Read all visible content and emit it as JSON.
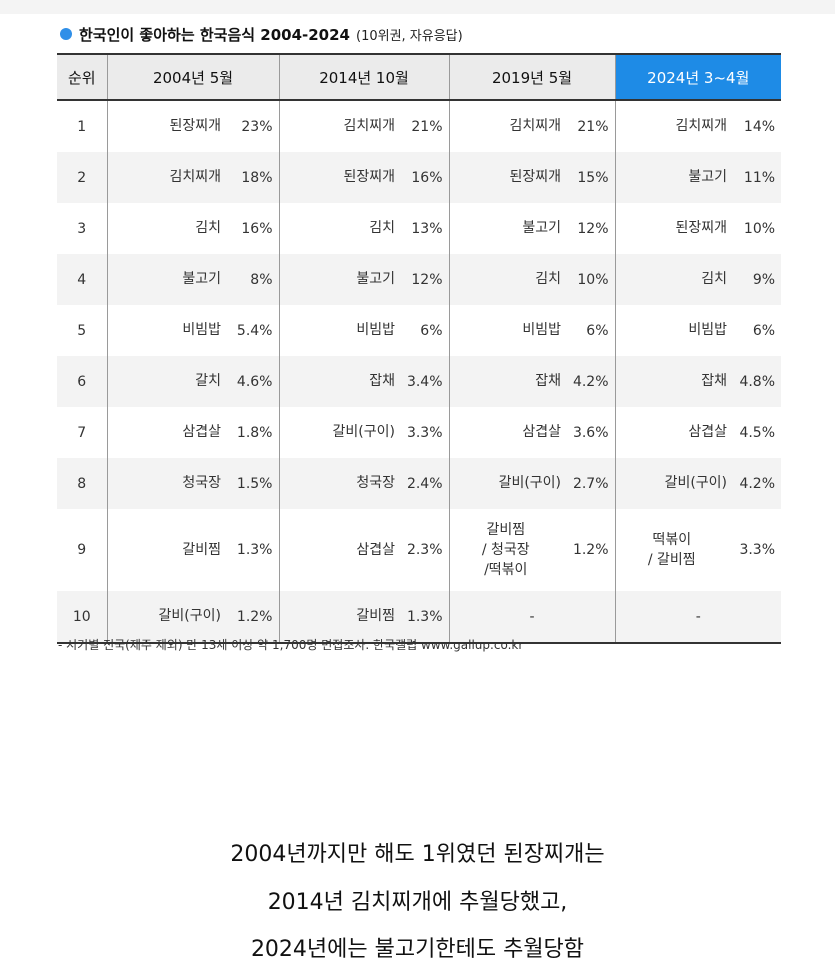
{
  "title": {
    "main": "한국인이 좋아하는 한국음식 2004-2024",
    "sub": "(10위권, 자유응답)"
  },
  "table": {
    "rank_header": "순위",
    "period_headers": [
      "2004년 5월",
      "2014년 10월",
      "2019년 5월",
      "2024년 3~4월"
    ],
    "rows": [
      {
        "rank": "1",
        "cells": [
          {
            "food": "된장찌개",
            "pct": "23%",
            "red": true
          },
          {
            "food": "김치찌개",
            "pct": "21%"
          },
          {
            "food": "김치찌개",
            "pct": "21%"
          },
          {
            "food": "김치찌개",
            "pct": "14%"
          }
        ]
      },
      {
        "rank": "2",
        "cells": [
          {
            "food": "김치찌개",
            "pct": "18%"
          },
          {
            "food": "된장찌개",
            "pct": "16%",
            "red": true
          },
          {
            "food": "된장찌개",
            "pct": "15%",
            "red": true
          },
          {
            "food": "불고기",
            "pct": "11%"
          }
        ]
      },
      {
        "rank": "3",
        "cells": [
          {
            "food": "김치",
            "pct": "16%"
          },
          {
            "food": "김치",
            "pct": "13%"
          },
          {
            "food": "불고기",
            "pct": "12%"
          },
          {
            "food": "된장찌개",
            "pct": "10%",
            "red": true
          }
        ]
      },
      {
        "rank": "4",
        "cells": [
          {
            "food": "불고기",
            "pct": "8%"
          },
          {
            "food": "불고기",
            "pct": "12%"
          },
          {
            "food": "김치",
            "pct": "10%"
          },
          {
            "food": "김치",
            "pct": "9%"
          }
        ]
      },
      {
        "rank": "5",
        "cells": [
          {
            "food": "비빔밥",
            "pct": "5.4%"
          },
          {
            "food": "비빔밥",
            "pct": "6%"
          },
          {
            "food": "비빔밥",
            "pct": "6%"
          },
          {
            "food": "비빔밥",
            "pct": "6%"
          }
        ]
      },
      {
        "rank": "6",
        "cells": [
          {
            "food": "갈치",
            "pct": "4.6%"
          },
          {
            "food": "잡채",
            "pct": "3.4%"
          },
          {
            "food": "잡채",
            "pct": "4.2%"
          },
          {
            "food": "잡채",
            "pct": "4.8%"
          }
        ]
      },
      {
        "rank": "7",
        "cells": [
          {
            "food": "삼겹살",
            "pct": "1.8%"
          },
          {
            "food": "갈비(구이)",
            "pct": "3.3%"
          },
          {
            "food": "삼겹살",
            "pct": "3.6%"
          },
          {
            "food": "삼겹살",
            "pct": "4.5%"
          }
        ]
      },
      {
        "rank": "8",
        "cells": [
          {
            "food": "청국장",
            "pct": "1.5%"
          },
          {
            "food": "청국장",
            "pct": "2.4%"
          },
          {
            "food": "갈비(구이)",
            "pct": "2.7%"
          },
          {
            "food": "갈비(구이)",
            "pct": "4.2%"
          }
        ]
      },
      {
        "rank": "9",
        "cells": [
          {
            "food": "갈비찜",
            "pct": "1.3%"
          },
          {
            "food": "삼겹살",
            "pct": "2.3%"
          },
          {
            "food": "갈비찜\n/ 청국장\n/떡볶이",
            "pct": "1.2%"
          },
          {
            "food": "떡볶이\n/ 갈비찜",
            "pct": "3.3%"
          }
        ]
      },
      {
        "rank": "10",
        "cells": [
          {
            "food": "갈비(구이)",
            "pct": "1.2%"
          },
          {
            "food": "갈비찜",
            "pct": "1.3%"
          },
          {
            "food": "-",
            "pct": ""
          },
          {
            "food": "-",
            "pct": ""
          }
        ]
      }
    ]
  },
  "footnote": "- 시기별 전국(제주 제외) 만 13세 이상 약 1,700명 면접조사. 한국갤럽 www.gallup.co.kr",
  "caption": {
    "line1": "2004년까지만 해도 1위였던 된장찌개는",
    "line2": "2014년 김치찌개에 추월당했고,",
    "line3": "2024년에는 불고기한테도 추월당함"
  },
  "colors": {
    "accent_blue": "#1e8be6",
    "highlight_red": "#b33a3a",
    "header_gray": "#ebebeb",
    "row_alt_gray": "#f3f3f3"
  }
}
